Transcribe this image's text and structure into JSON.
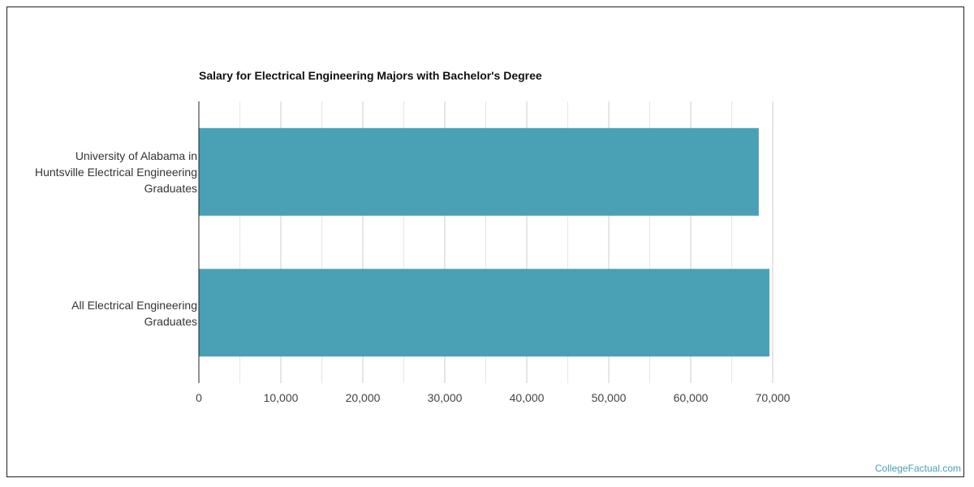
{
  "chart_data": {
    "type": "bar",
    "orientation": "horizontal",
    "title": "Salary for Electrical Engineering Majors with Bachelor's Degree",
    "categories": [
      "University of Alabama in\nHuntsville Electrical Engineering\nGraduates",
      "All Electrical Engineering\nGraduates"
    ],
    "values": [
      68300,
      69600
    ],
    "xlim": [
      0,
      70000
    ],
    "xticks": [
      0,
      10000,
      20000,
      30000,
      40000,
      50000,
      60000,
      70000
    ],
    "xtick_labels": [
      "0",
      "10,000",
      "20,000",
      "30,000",
      "40,000",
      "50,000",
      "60,000",
      "70,000"
    ],
    "grid": true,
    "legend": "none",
    "bar_color": "#4aa0b5"
  },
  "watermark": "CollegeFactual.com"
}
